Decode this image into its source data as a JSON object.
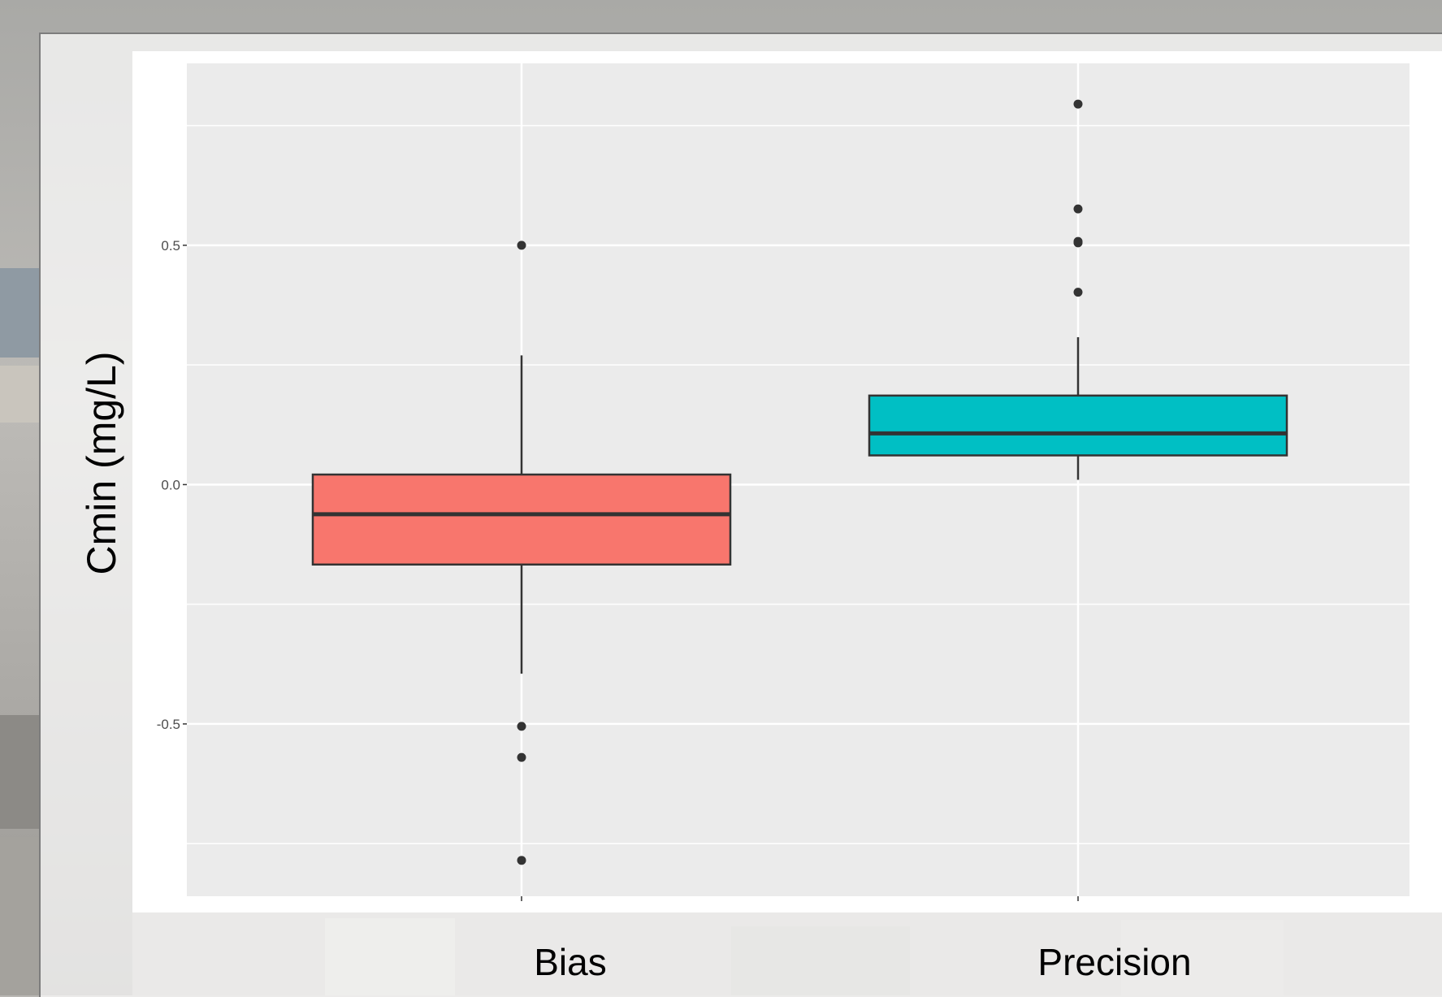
{
  "chart_data": {
    "type": "boxplot",
    "title": "",
    "xlabel": "",
    "ylabel": "Cmin (mg/L)",
    "categories": [
      "Bias",
      "Precision"
    ],
    "y_ticks": [
      {
        "value": -0.5,
        "label": "-0.5"
      },
      {
        "value": 0.0,
        "label": "0.0"
      },
      {
        "value": 0.5,
        "label": "0.5"
      }
    ],
    "y_minor_gridlines": [
      -0.75,
      -0.25,
      0.25,
      0.75
    ],
    "ylim": [
      -0.86,
      0.88
    ],
    "grid": true,
    "legend": "none",
    "boxes": [
      {
        "category": "Bias",
        "color": "#f8766d",
        "whisker_low": -0.395,
        "q1": -0.167,
        "median": -0.062,
        "q3": 0.021,
        "whisker_high": 0.27,
        "outliers": [
          0.5,
          -0.505,
          -0.57,
          -0.785
        ]
      },
      {
        "category": "Precision",
        "color": "#00bfc4",
        "whisker_low": 0.01,
        "q1": 0.061,
        "median": 0.107,
        "q3": 0.186,
        "whisker_high": 0.308,
        "outliers": [
          0.795,
          0.576,
          0.508,
          0.505,
          0.402
        ]
      }
    ],
    "colors": {
      "panel": "#ebebeb",
      "gridline": "#ffffff",
      "box_outline": "#333333",
      "point": "#333333"
    }
  }
}
